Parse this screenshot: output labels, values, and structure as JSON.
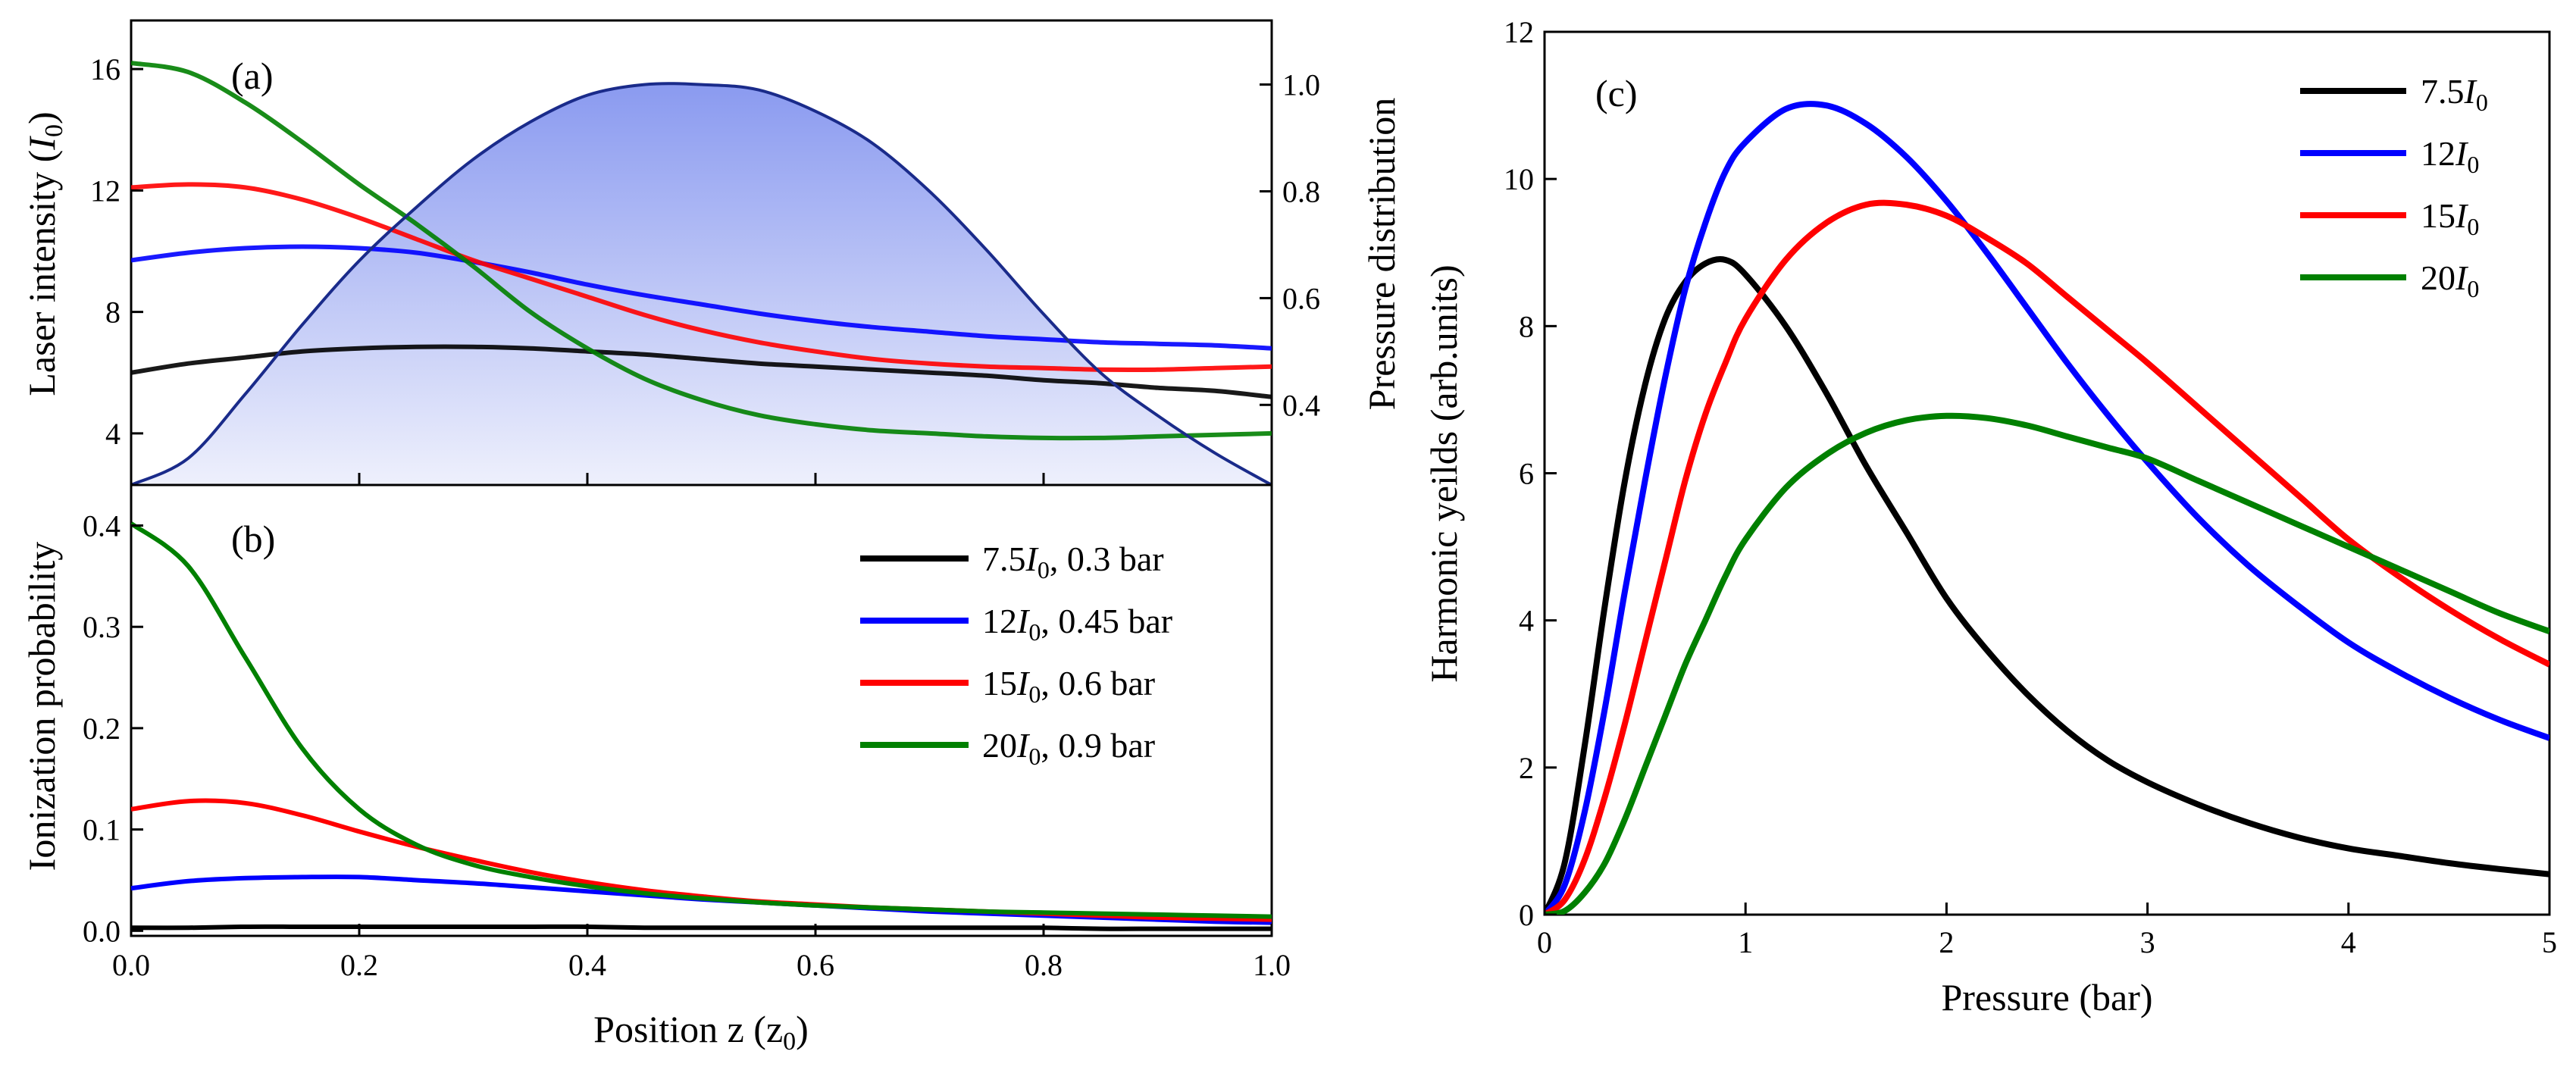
{
  "chart_data": [
    {
      "id": "a",
      "type": "line",
      "panel_label": "(a)",
      "xlabel": "Position z (z₀)",
      "ylabel": "Laser intensity (I₀)",
      "y2label": "Pressure distribution",
      "xlim": [
        0,
        1.0
      ],
      "ylim": [
        2.3,
        17.6
      ],
      "y2lim": [
        0.25,
        1.12
      ],
      "yticks": [
        4,
        8,
        12,
        16
      ],
      "y2ticks": [
        0.4,
        0.6,
        0.8,
        1.0
      ],
      "ytick_labels": [
        "4",
        "8",
        "12",
        "16"
      ],
      "y2tick_labels": [
        "0.4",
        "0.6",
        "0.8",
        "1.0"
      ],
      "x": [
        0,
        0.05,
        0.1,
        0.15,
        0.2,
        0.25,
        0.3,
        0.35,
        0.4,
        0.45,
        0.5,
        0.55,
        0.6,
        0.65,
        0.7,
        0.75,
        0.8,
        0.85,
        0.9,
        0.95,
        1.0
      ],
      "series": [
        {
          "name": "7.5I0",
          "color": "#000000",
          "values": [
            6.0,
            6.3,
            6.5,
            6.7,
            6.8,
            6.85,
            6.85,
            6.8,
            6.7,
            6.6,
            6.45,
            6.3,
            6.2,
            6.1,
            6.0,
            5.9,
            5.75,
            5.65,
            5.5,
            5.4,
            5.2
          ]
        },
        {
          "name": "12I0",
          "color": "#0000ff",
          "values": [
            9.7,
            9.95,
            10.1,
            10.15,
            10.1,
            9.95,
            9.65,
            9.3,
            8.9,
            8.55,
            8.25,
            7.95,
            7.7,
            7.5,
            7.35,
            7.2,
            7.1,
            7.0,
            6.95,
            6.9,
            6.8
          ]
        },
        {
          "name": "15I0",
          "color": "#ff0000",
          "values": [
            12.1,
            12.2,
            12.1,
            11.7,
            11.1,
            10.4,
            9.7,
            9.1,
            8.5,
            7.9,
            7.4,
            7.0,
            6.7,
            6.45,
            6.3,
            6.2,
            6.15,
            6.1,
            6.1,
            6.15,
            6.2
          ]
        },
        {
          "name": "20I0",
          "color": "#008000",
          "values": [
            16.2,
            15.9,
            14.9,
            13.6,
            12.2,
            10.9,
            9.5,
            8.0,
            6.8,
            5.8,
            5.1,
            4.6,
            4.3,
            4.1,
            4.0,
            3.9,
            3.85,
            3.85,
            3.9,
            3.95,
            4.0
          ]
        }
      ],
      "pressure": {
        "name": "Pressure distribution",
        "color": "#1a2b8a",
        "fill_top": "#8a9af0",
        "fill_bottom": "#eef0fc",
        "x": [
          0,
          0.05,
          0.1,
          0.15,
          0.2,
          0.25,
          0.3,
          0.35,
          0.4,
          0.45,
          0.5,
          0.55,
          0.6,
          0.65,
          0.7,
          0.75,
          0.8,
          0.85,
          0.9,
          0.95,
          1.0
        ],
        "values": [
          0.25,
          0.3,
          0.42,
          0.55,
          0.67,
          0.77,
          0.86,
          0.93,
          0.98,
          1.0,
          1.0,
          0.99,
          0.95,
          0.89,
          0.8,
          0.69,
          0.57,
          0.46,
          0.38,
          0.31,
          0.25
        ]
      }
    },
    {
      "id": "b",
      "type": "line",
      "panel_label": "(b)",
      "xlabel": "Position z (z₀)",
      "ylabel": "Ionization probability",
      "xlim": [
        0,
        1.0
      ],
      "ylim": [
        -0.005,
        0.44
      ],
      "xticks": [
        0.0,
        0.2,
        0.4,
        0.6,
        0.8,
        1.0
      ],
      "xtick_labels": [
        "0.0",
        "0.2",
        "0.4",
        "0.6",
        "0.8",
        "1.0"
      ],
      "yticks": [
        0.0,
        0.1,
        0.2,
        0.3,
        0.4
      ],
      "ytick_labels": [
        "0.0",
        "0.1",
        "0.2",
        "0.3",
        "0.4"
      ],
      "x": [
        0,
        0.05,
        0.1,
        0.15,
        0.2,
        0.25,
        0.3,
        0.35,
        0.4,
        0.45,
        0.5,
        0.55,
        0.6,
        0.65,
        0.7,
        0.75,
        0.8,
        0.85,
        0.9,
        0.95,
        1.0
      ],
      "series": [
        {
          "name": "7.5I0, 0.3 bar",
          "color": "#000000",
          "values": [
            0.003,
            0.003,
            0.004,
            0.004,
            0.004,
            0.004,
            0.004,
            0.004,
            0.004,
            0.003,
            0.003,
            0.003,
            0.003,
            0.003,
            0.003,
            0.003,
            0.003,
            0.002,
            0.002,
            0.002,
            0.002
          ]
        },
        {
          "name": "12I0, 0.45 bar",
          "color": "#0000ff",
          "values": [
            0.042,
            0.049,
            0.052,
            0.053,
            0.053,
            0.05,
            0.047,
            0.043,
            0.039,
            0.035,
            0.031,
            0.028,
            0.025,
            0.022,
            0.019,
            0.017,
            0.015,
            0.013,
            0.011,
            0.009,
            0.008
          ]
        },
        {
          "name": "15I0, 0.6 bar",
          "color": "#ff0000",
          "values": [
            0.12,
            0.128,
            0.126,
            0.114,
            0.098,
            0.083,
            0.07,
            0.058,
            0.048,
            0.04,
            0.034,
            0.029,
            0.026,
            0.023,
            0.021,
            0.019,
            0.017,
            0.015,
            0.013,
            0.012,
            0.011
          ]
        },
        {
          "name": "20I0, 0.9 bar",
          "color": "#008000",
          "values": [
            0.402,
            0.36,
            0.27,
            0.18,
            0.12,
            0.085,
            0.065,
            0.053,
            0.044,
            0.037,
            0.032,
            0.028,
            0.025,
            0.023,
            0.021,
            0.019,
            0.018,
            0.017,
            0.016,
            0.015,
            0.014
          ]
        }
      ],
      "legend": [
        {
          "label": "7.5I₀, 0.3 bar",
          "color": "#000000"
        },
        {
          "label": "12I₀, 0.45 bar",
          "color": "#0000ff"
        },
        {
          "label": "15I₀, 0.6 bar",
          "color": "#ff0000"
        },
        {
          "label": "20I₀, 0.9 bar",
          "color": "#008000"
        }
      ]
    },
    {
      "id": "c",
      "type": "line",
      "panel_label": "(c)",
      "xlabel": "Pressure (bar)",
      "ylabel": "Harmonic yeilds (arb.units)",
      "xlim": [
        0,
        5
      ],
      "ylim": [
        0,
        12
      ],
      "xticks": [
        0,
        1,
        2,
        3,
        4,
        5
      ],
      "xtick_labels": [
        "0",
        "1",
        "2",
        "3",
        "4",
        "5"
      ],
      "yticks": [
        0,
        2,
        4,
        6,
        8,
        10,
        12
      ],
      "ytick_labels": [
        "0",
        "2",
        "4",
        "6",
        "8",
        "10",
        "12"
      ],
      "x": [
        0,
        0.1,
        0.2,
        0.3,
        0.4,
        0.5,
        0.6,
        0.7,
        0.8,
        0.9,
        1.0,
        1.2,
        1.4,
        1.6,
        1.8,
        2.0,
        2.2,
        2.4,
        2.6,
        2.8,
        3.0,
        3.25,
        3.5,
        3.75,
        4.0,
        4.25,
        4.5,
        4.75,
        5.0
      ],
      "series": [
        {
          "name": "7.5I0",
          "color": "#000000",
          "values": [
            0.0,
            0.7,
            2.3,
            4.2,
            5.9,
            7.2,
            8.1,
            8.6,
            8.85,
            8.9,
            8.7,
            8.0,
            7.1,
            6.1,
            5.2,
            4.3,
            3.6,
            3.0,
            2.5,
            2.1,
            1.8,
            1.5,
            1.25,
            1.05,
            0.9,
            0.8,
            0.7,
            0.62,
            0.55
          ]
        },
        {
          "name": "12I0",
          "color": "#0000ff",
          "values": [
            0.0,
            0.4,
            1.4,
            2.8,
            4.4,
            5.9,
            7.3,
            8.5,
            9.4,
            10.1,
            10.5,
            10.95,
            11.0,
            10.75,
            10.3,
            9.7,
            9.0,
            8.25,
            7.5,
            6.8,
            6.15,
            5.4,
            4.75,
            4.2,
            3.7,
            3.3,
            2.95,
            2.65,
            2.4
          ]
        },
        {
          "name": "15I0",
          "color": "#ff0000",
          "values": [
            0.0,
            0.2,
            0.75,
            1.6,
            2.6,
            3.7,
            4.8,
            5.9,
            6.8,
            7.5,
            8.1,
            8.9,
            9.4,
            9.65,
            9.65,
            9.5,
            9.2,
            8.85,
            8.4,
            7.95,
            7.5,
            6.9,
            6.3,
            5.7,
            5.1,
            4.6,
            4.15,
            3.75,
            3.4
          ]
        },
        {
          "name": "20I0",
          "color": "#008000",
          "values": [
            0.0,
            0.05,
            0.3,
            0.7,
            1.3,
            2.0,
            2.7,
            3.4,
            4.0,
            4.6,
            5.1,
            5.8,
            6.25,
            6.55,
            6.72,
            6.78,
            6.75,
            6.65,
            6.5,
            6.35,
            6.2,
            5.9,
            5.6,
            5.3,
            5.0,
            4.7,
            4.4,
            4.1,
            3.85
          ]
        }
      ],
      "legend": [
        {
          "label": "7.5I₀",
          "color": "#000000"
        },
        {
          "label": "12I₀",
          "color": "#0000ff"
        },
        {
          "label": "15I₀",
          "color": "#ff0000"
        },
        {
          "label": "20I₀",
          "color": "#008000"
        }
      ]
    }
  ]
}
